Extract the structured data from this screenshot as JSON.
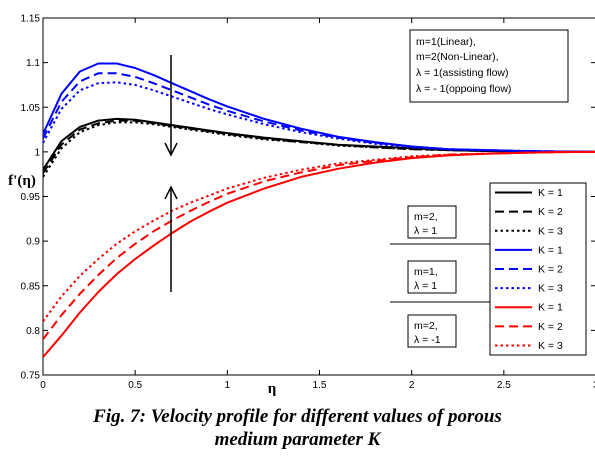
{
  "caption": {
    "line1": "Fig. 7: Velocity profile for different values of porous",
    "line2": "medium parameter K"
  },
  "chart_data": {
    "type": "line",
    "title": "",
    "xlabel": "η",
    "ylabel": "f'(η)",
    "xlim": [
      0,
      3
    ],
    "ylim": [
      0.75,
      1.15
    ],
    "x_ticks": [
      0,
      0.5,
      1,
      1.5,
      2,
      2.5,
      3
    ],
    "x_tick_labels": [
      "0",
      "0.5",
      "1",
      "1.5",
      "2",
      "2.5",
      "3"
    ],
    "y_ticks": [
      0.75,
      0.8,
      0.85,
      0.9,
      0.95,
      1,
      1.05,
      1.1,
      1.15
    ],
    "y_tick_labels": [
      "0.75",
      "0.8",
      "0.85",
      "0.9",
      "0.95",
      "1",
      "1.05",
      "1.1",
      "1.15"
    ],
    "grid": false,
    "x": [
      0,
      0.1,
      0.2,
      0.3,
      0.4,
      0.5,
      0.6,
      0.7,
      0.8,
      0.9,
      1.0,
      1.2,
      1.4,
      1.6,
      1.8,
      2.0,
      2.2,
      2.4,
      2.6,
      2.8,
      3.0
    ],
    "series": [
      {
        "name": "K = 1",
        "group": "m=2, λ = 1",
        "color": "#000000",
        "dash": "solid",
        "values": [
          0.98,
          1.012,
          1.028,
          1.035,
          1.037,
          1.036,
          1.033,
          1.03,
          1.027,
          1.024,
          1.021,
          1.016,
          1.012,
          1.008,
          1.006,
          1.004,
          1.002,
          1.001,
          1.0005,
          1.0002,
          1.0
        ]
      },
      {
        "name": "K = 2",
        "group": "m=2, λ = 1",
        "color": "#000000",
        "dash": "dashed",
        "values": [
          0.976,
          1.008,
          1.025,
          1.032,
          1.035,
          1.035,
          1.032,
          1.029,
          1.026,
          1.023,
          1.02,
          1.015,
          1.011,
          1.008,
          1.005,
          1.003,
          1.002,
          1.001,
          1.0005,
          1.0002,
          1.0
        ]
      },
      {
        "name": "K = 3",
        "group": "m=2, λ = 1",
        "color": "#000000",
        "dash": "dotted",
        "values": [
          0.972,
          1.004,
          1.022,
          1.03,
          1.033,
          1.033,
          1.031,
          1.028,
          1.025,
          1.022,
          1.019,
          1.014,
          1.011,
          1.007,
          1.005,
          1.003,
          1.002,
          1.001,
          1.0005,
          1.0002,
          1.0
        ]
      },
      {
        "name": "K = 1",
        "group": "m=1, λ = 1",
        "color": "#0000ff",
        "dash": "solid",
        "values": [
          1.02,
          1.065,
          1.09,
          1.099,
          1.099,
          1.094,
          1.086,
          1.077,
          1.068,
          1.059,
          1.051,
          1.037,
          1.026,
          1.017,
          1.011,
          1.006,
          1.003,
          1.002,
          1.001,
          1.0004,
          1.0
        ]
      },
      {
        "name": "K = 2",
        "group": "m=1, λ = 1",
        "color": "#0000ff",
        "dash": "dashed",
        "values": [
          1.015,
          1.056,
          1.079,
          1.088,
          1.088,
          1.084,
          1.077,
          1.069,
          1.061,
          1.053,
          1.046,
          1.034,
          1.024,
          1.016,
          1.01,
          1.006,
          1.003,
          1.002,
          1.001,
          1.0004,
          1.0
        ]
      },
      {
        "name": "K = 3",
        "group": "m=1, λ = 1",
        "color": "#0000ff",
        "dash": "dotted",
        "values": [
          1.01,
          1.048,
          1.069,
          1.077,
          1.078,
          1.075,
          1.069,
          1.062,
          1.055,
          1.048,
          1.042,
          1.031,
          1.022,
          1.015,
          1.009,
          1.005,
          1.003,
          1.002,
          1.001,
          1.0004,
          1.0
        ]
      },
      {
        "name": "K = 1",
        "group": "m=2, λ = -1",
        "color": "#ff0000",
        "dash": "solid",
        "values": [
          0.77,
          0.794,
          0.82,
          0.843,
          0.863,
          0.88,
          0.895,
          0.909,
          0.922,
          0.933,
          0.943,
          0.959,
          0.972,
          0.981,
          0.988,
          0.993,
          0.996,
          0.998,
          0.999,
          0.9997,
          1.0
        ]
      },
      {
        "name": "K = 2",
        "group": "m=2, λ = -1",
        "color": "#ff0000",
        "dash": "dashed",
        "values": [
          0.79,
          0.817,
          0.841,
          0.862,
          0.881,
          0.897,
          0.911,
          0.923,
          0.934,
          0.944,
          0.953,
          0.967,
          0.977,
          0.985,
          0.99,
          0.994,
          0.997,
          0.998,
          0.999,
          0.9997,
          1.0
        ]
      },
      {
        "name": "K = 3",
        "group": "m=2, λ = -1",
        "color": "#ff0000",
        "dash": "dotted",
        "values": [
          0.81,
          0.838,
          0.861,
          0.88,
          0.897,
          0.911,
          0.923,
          0.934,
          0.943,
          0.951,
          0.959,
          0.971,
          0.98,
          0.987,
          0.991,
          0.995,
          0.997,
          0.998,
          0.999,
          0.9997,
          1.0
        ]
      }
    ],
    "legend": {
      "placement": "bottom-right",
      "entries": [
        "K = 1",
        "K = 2",
        "K = 3",
        "K = 1",
        "K = 2",
        "K = 3",
        "K = 1",
        "K = 2",
        "K = 3"
      ]
    },
    "annotations": {
      "info_box": [
        "m=1(Linear),",
        "m=2(Non-Linear),",
        "λ = 1(assisting flow)",
        "λ = - 1(oppoing flow)"
      ],
      "group_labels": [
        [
          "m=2,",
          "λ = 1"
        ],
        [
          "m=1,",
          "λ = 1"
        ],
        [
          "m=2,",
          "λ = -1"
        ]
      ]
    }
  }
}
